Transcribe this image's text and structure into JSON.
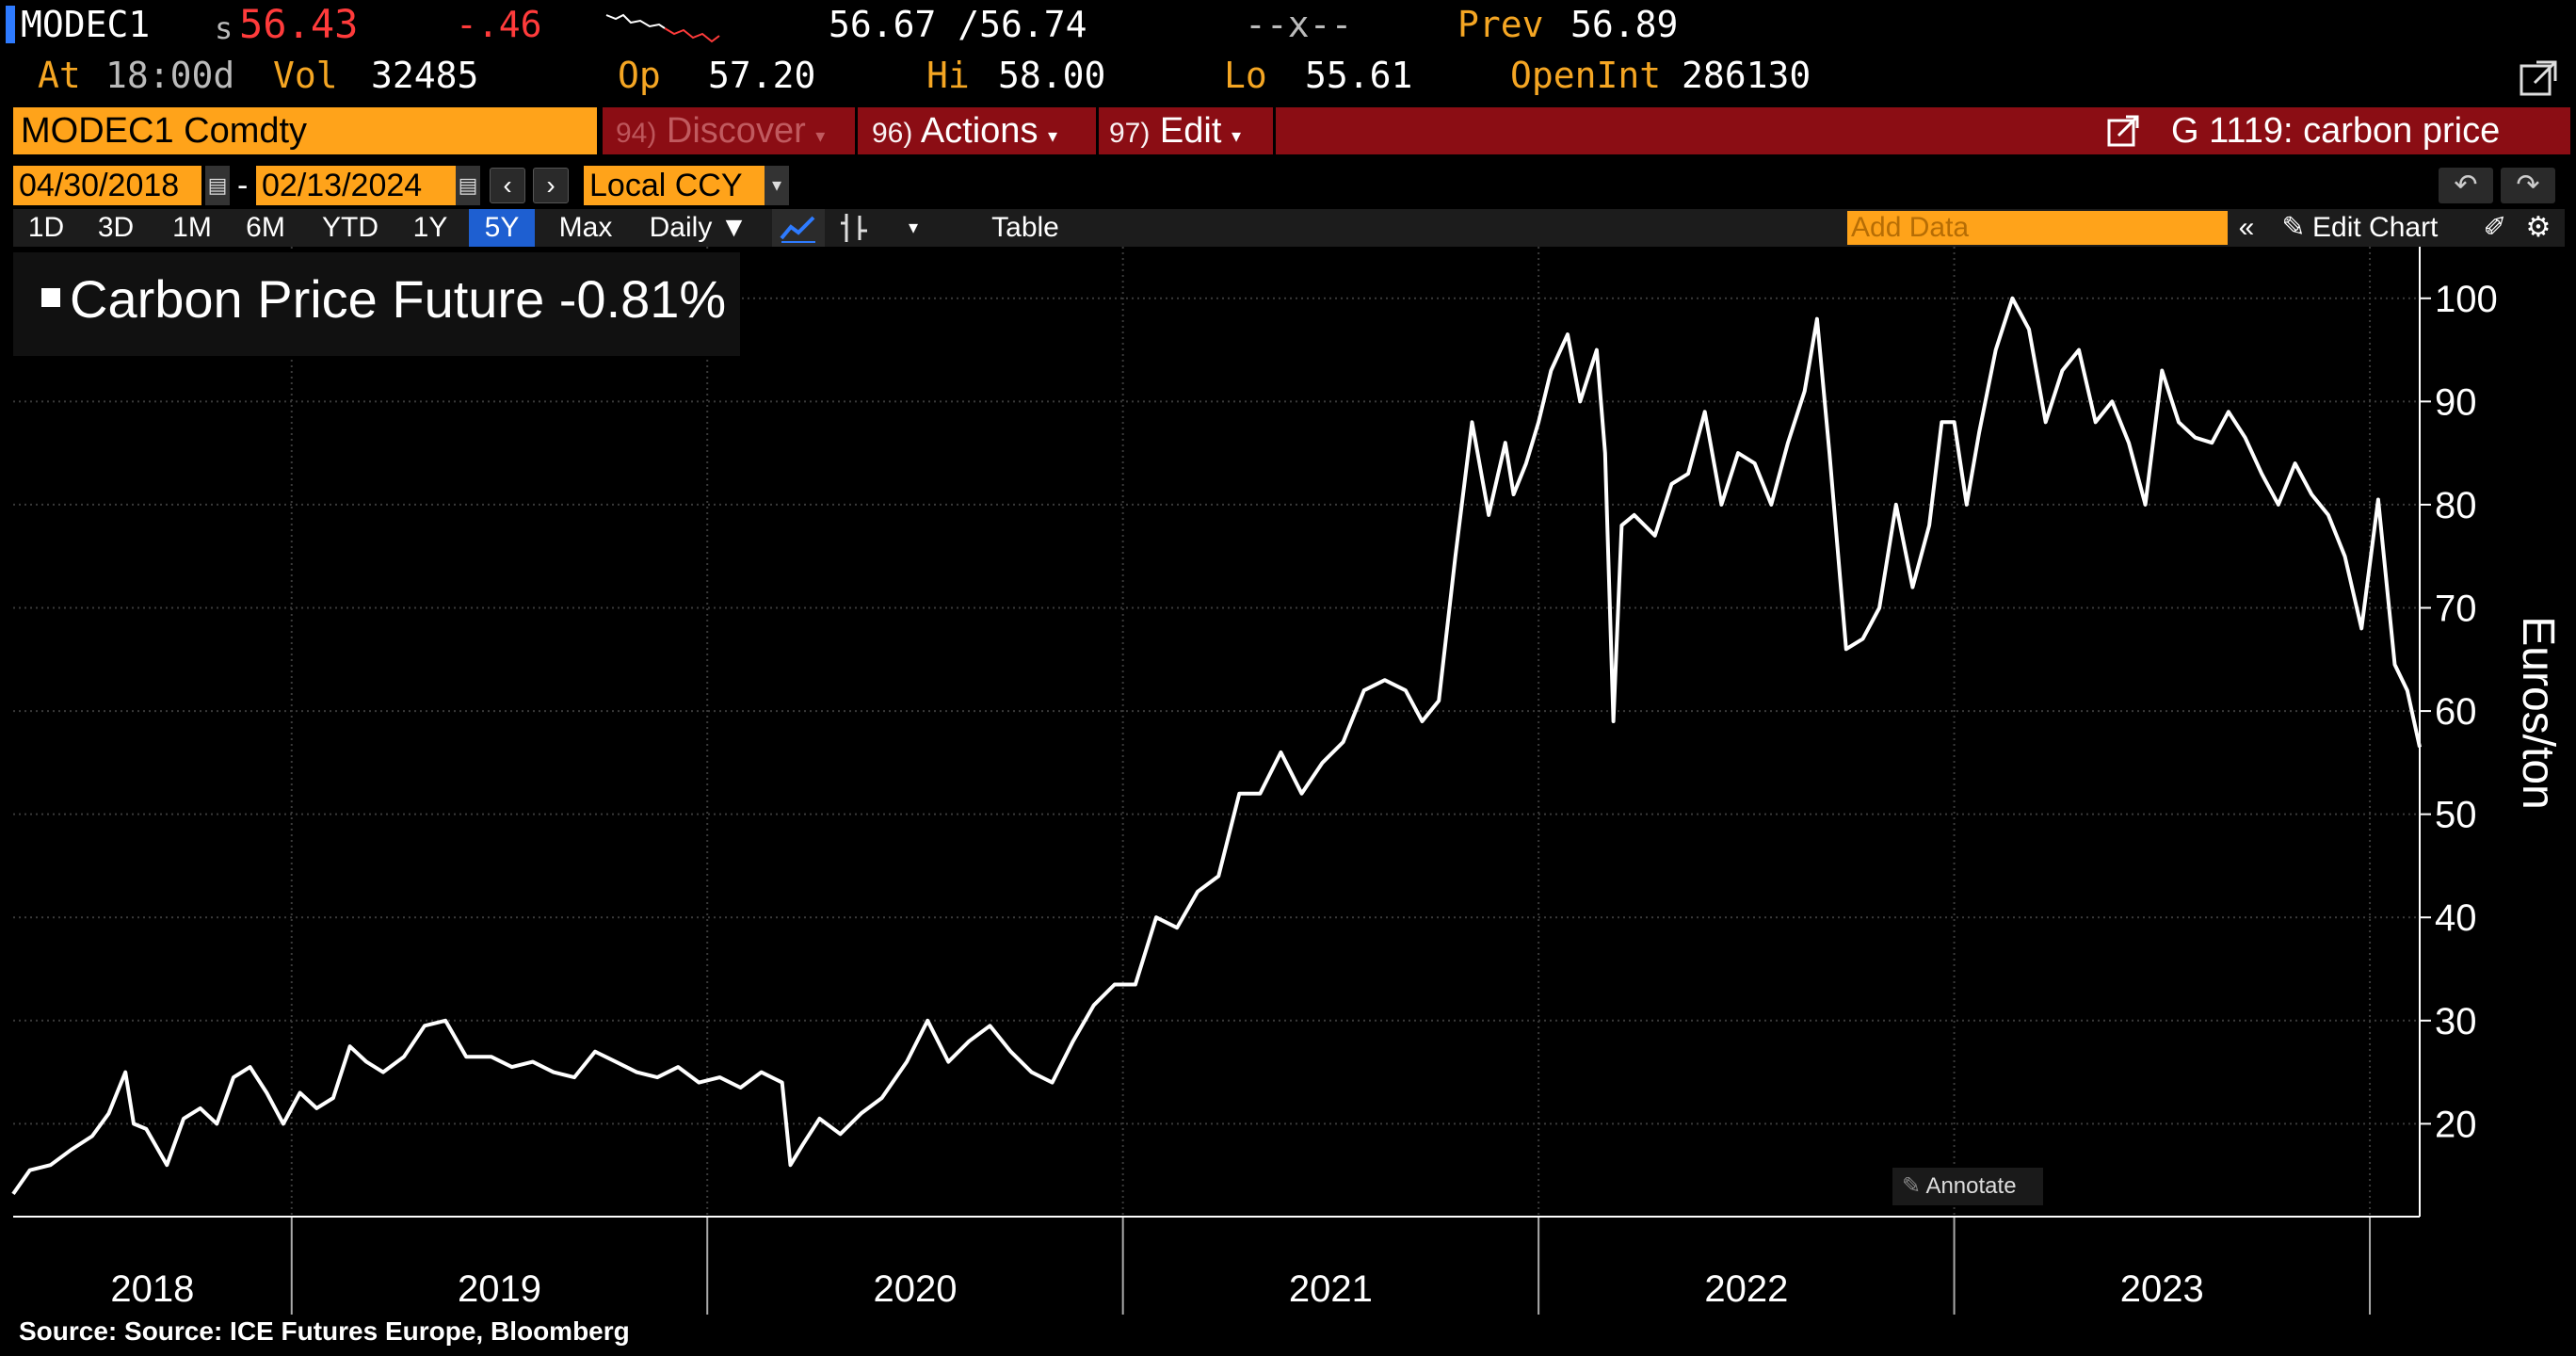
{
  "quote": {
    "ticker": "MODEC1",
    "price_prefix": "s",
    "price": "56.43",
    "change": "-.46",
    "bid_ask": "56.67 /56.74",
    "size": "--x--",
    "prev_label": "Prev",
    "prev": "56.89",
    "at_label": "At",
    "at_time": "18:00d",
    "vol_label": "Vol",
    "vol": "32485",
    "op_label": "Op",
    "op": "57.20",
    "hi_label": "Hi",
    "hi": "58.00",
    "lo_label": "Lo",
    "lo": "55.61",
    "oi_label": "OpenInt",
    "oi": "286130"
  },
  "command": {
    "security": "MODEC1 Comdty",
    "discover_num": "94)",
    "discover": "Discover",
    "actions_num": "96)",
    "actions": "Actions",
    "edit_num": "97)",
    "edit": "Edit",
    "graph": "G 1119: carbon price"
  },
  "range": {
    "start": "04/30/2018",
    "end": "02/13/2024",
    "currency": "Local CCY"
  },
  "toolbar": {
    "periods": [
      "1D",
      "3D",
      "1M",
      "6M",
      "YTD",
      "1Y",
      "5Y",
      "Max"
    ],
    "active_period": "5Y",
    "frequency": "Daily ▼",
    "table": "Table",
    "add_data_placeholder": "Add Data",
    "edit_chart": "Edit Chart"
  },
  "legend": {
    "label": "Carbon Price Future -0.81%"
  },
  "annotate": "Annotate",
  "source": "Source:  Source: ICE Futures Europe, Bloomberg",
  "colors": {
    "accent_orange": "#ffa31a",
    "menu_red": "#8b0d14",
    "active_blue": "#1e5fd1",
    "negative": "#ff3b3b",
    "line": "#ffffff"
  },
  "chart_data": {
    "type": "line",
    "ylabel": "Euros/ton",
    "ylim": [
      11,
      105
    ],
    "yticks": [
      20,
      30,
      40,
      50,
      60,
      70,
      80,
      90,
      100
    ],
    "xlim": [
      2018.33,
      2024.12
    ],
    "year_labels": [
      "2018",
      "2019",
      "2020",
      "2021",
      "2022",
      "2023"
    ],
    "grid": true,
    "series": [
      {
        "name": "Carbon Price Future",
        "x": [
          2018.33,
          2018.37,
          2018.42,
          2018.47,
          2018.52,
          2018.56,
          2018.6,
          2018.62,
          2018.65,
          2018.7,
          2018.74,
          2018.78,
          2018.82,
          2018.86,
          2018.9,
          2018.94,
          2018.98,
          2019.02,
          2019.06,
          2019.1,
          2019.14,
          2019.18,
          2019.22,
          2019.27,
          2019.32,
          2019.37,
          2019.42,
          2019.48,
          2019.53,
          2019.58,
          2019.63,
          2019.68,
          2019.73,
          2019.78,
          2019.83,
          2019.88,
          2019.93,
          2019.98,
          2020.03,
          2020.08,
          2020.13,
          2020.18,
          2020.2,
          2020.23,
          2020.27,
          2020.32,
          2020.37,
          2020.42,
          2020.48,
          2020.53,
          2020.58,
          2020.63,
          2020.68,
          2020.73,
          2020.78,
          2020.83,
          2020.88,
          2020.93,
          2020.98,
          2021.03,
          2021.08,
          2021.13,
          2021.18,
          2021.23,
          2021.28,
          2021.33,
          2021.38,
          2021.43,
          2021.48,
          2021.53,
          2021.58,
          2021.63,
          2021.68,
          2021.72,
          2021.76,
          2021.8,
          2021.84,
          2021.88,
          2021.92,
          2021.94,
          2021.97,
          2022.0,
          2022.03,
          2022.07,
          2022.1,
          2022.14,
          2022.16,
          2022.18,
          2022.2,
          2022.23,
          2022.28,
          2022.32,
          2022.36,
          2022.4,
          2022.44,
          2022.48,
          2022.52,
          2022.56,
          2022.6,
          2022.64,
          2022.67,
          2022.7,
          2022.74,
          2022.78,
          2022.82,
          2022.86,
          2022.9,
          2022.94,
          2022.97,
          2023.0,
          2023.03,
          2023.06,
          2023.1,
          2023.14,
          2023.18,
          2023.22,
          2023.26,
          2023.3,
          2023.34,
          2023.38,
          2023.42,
          2023.46,
          2023.5,
          2023.54,
          2023.58,
          2023.62,
          2023.66,
          2023.7,
          2023.74,
          2023.78,
          2023.82,
          2023.86,
          2023.9,
          2023.94,
          2023.98,
          2024.02,
          2024.06,
          2024.09,
          2024.12
        ],
        "values": [
          13.2,
          15.5,
          16.0,
          17.5,
          18.8,
          21.0,
          25.0,
          20.0,
          19.5,
          16.0,
          20.5,
          21.5,
          20.0,
          24.5,
          25.5,
          23.0,
          20.0,
          23.0,
          21.5,
          22.5,
          27.5,
          26.0,
          25.0,
          26.5,
          29.5,
          30.0,
          26.5,
          26.5,
          25.5,
          26.0,
          25.0,
          24.5,
          27.0,
          26.0,
          25.0,
          24.5,
          25.5,
          24.0,
          24.5,
          23.5,
          25.0,
          24.0,
          16.0,
          18.0,
          20.5,
          19.0,
          21.0,
          22.5,
          26.0,
          30.0,
          26.0,
          28.0,
          29.5,
          27.0,
          25.0,
          24.0,
          28.0,
          31.5,
          33.5,
          33.5,
          40.0,
          39.0,
          42.5,
          44.0,
          52.0,
          52.0,
          56.0,
          52.0,
          55.0,
          57.0,
          62.0,
          63.0,
          62.0,
          59.0,
          61.0,
          75.0,
          88.0,
          79.0,
          86.0,
          81.0,
          84.0,
          88.0,
          93.0,
          96.5,
          90.0,
          95.0,
          85.0,
          59.0,
          78.0,
          79.0,
          77.0,
          82.0,
          83.0,
          89.0,
          80.0,
          85.0,
          84.0,
          80.0,
          86.0,
          91.0,
          98.0,
          85.0,
          66.0,
          67.0,
          70.0,
          80.0,
          72.0,
          78.0,
          88.0,
          88.0,
          80.0,
          87.0,
          95.0,
          100.0,
          97.0,
          88.0,
          93.0,
          95.0,
          88.0,
          90.0,
          86.0,
          80.0,
          93.0,
          88.0,
          86.5,
          86.0,
          89.0,
          86.5,
          83.0,
          80.0,
          84.0,
          81.0,
          79.0,
          75.0,
          68.0,
          80.5,
          64.5,
          62.0,
          56.5
        ]
      }
    ]
  }
}
